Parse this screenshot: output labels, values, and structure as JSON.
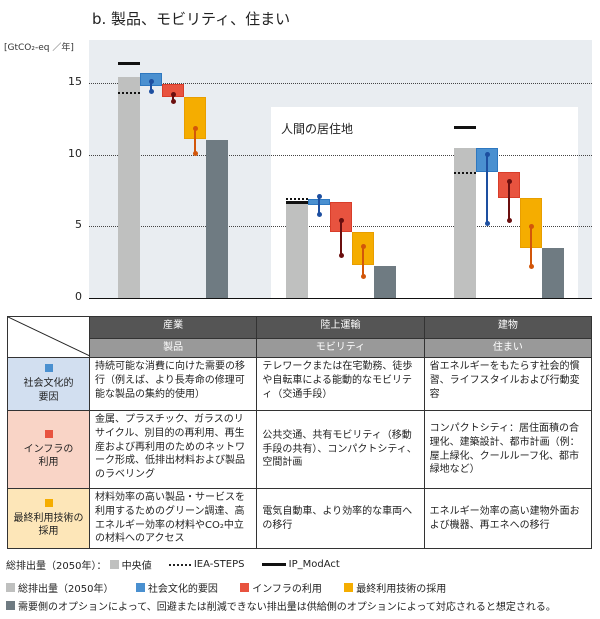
{
  "title": "b. 製品、モビリティ、住まい",
  "unit_label": "[GtCO₂-eq ／年]",
  "inset_label": "人間の居住地",
  "colors": {
    "total": "#bfc0bf",
    "socio_cultural": "#4a90d0",
    "infrastructure": "#e8533f",
    "end_use": "#f5ad00",
    "residual": "#6f7b82",
    "plot_bg": "#e9edf1"
  },
  "chart_data": {
    "type": "bar",
    "subtype": "waterfall",
    "title": "b. 製品、モビリティ、住まい",
    "ylabel": "GtCO₂-eq ／年",
    "ylim": [
      0,
      17.5
    ],
    "yticks": [
      0,
      5,
      10,
      15
    ],
    "grid": "dotted horizontal at 5, 10, 15",
    "categories": [
      "製品",
      "モビリティ",
      "住まい"
    ],
    "groups": [
      {
        "name": "製品",
        "total_median": 15.4,
        "iea_steps": 14.4,
        "ip_modact": 16.4,
        "socio_cultural": {
          "from": 15.7,
          "to": 14.8,
          "range": [
            15.1,
            14.4
          ]
        },
        "infrastructure": {
          "from": 14.9,
          "to": 14.0,
          "range": [
            14.2,
            13.7
          ]
        },
        "end_use": {
          "from": 14.0,
          "to": 11.1,
          "range": [
            11.8,
            10.1
          ]
        },
        "residual": 11.0
      },
      {
        "name": "モビリティ",
        "total_median": 6.6,
        "iea_steps": 7.0,
        "ip_modact": 6.7,
        "socio_cultural": {
          "from": 6.9,
          "to": 6.5,
          "range": [
            7.1,
            5.8
          ]
        },
        "infrastructure": {
          "from": 6.7,
          "to": 4.6,
          "range": [
            5.4,
            3.0
          ]
        },
        "end_use": {
          "from": 4.6,
          "to": 2.3,
          "range": [
            3.6,
            1.5
          ]
        },
        "residual": 2.2
      },
      {
        "name": "住まい",
        "total_median": 10.5,
        "iea_steps": 8.8,
        "ip_modact": 11.9,
        "socio_cultural": {
          "from": 10.5,
          "to": 8.8,
          "range": [
            10.0,
            5.2
          ]
        },
        "infrastructure": {
          "from": 8.8,
          "to": 7.0,
          "range": [
            8.1,
            5.4
          ]
        },
        "end_use": {
          "from": 7.0,
          "to": 3.5,
          "range": [
            5.0,
            2.2
          ]
        },
        "residual": 3.5
      }
    ],
    "annotations": [
      "人間の居住地"
    ],
    "legend_position": "bottom"
  },
  "table": {
    "sectors": [
      "産業",
      "陸上運輸",
      "建物"
    ],
    "services": [
      "製品",
      "モビリティ",
      "住まい"
    ],
    "rows": [
      {
        "label": "社会文化的要因",
        "label_lines": [
          "社会文化的",
          "要因"
        ],
        "color": "#4a90d0",
        "cells": [
          "持続可能な消費に向けた需要の移行（例えば、より長寿命の修理可能な製品の集約的使用）",
          "テレワークまたは在宅勤務、徒歩や自転車による能動的なモビリティ（交通手段）",
          "省エネルギーをもたらす社会的慣習、ライフスタイルおよび行動変容"
        ]
      },
      {
        "label": "インフラの利用",
        "label_lines": [
          "インフラの",
          "利用"
        ],
        "color": "#e8533f",
        "cells": [
          "金属、プラスチック、ガラスのリサイクル、別目的の再利用、再生産および再利用のためのネットワーク形成、低排出材料および製品のラベリング",
          "公共交通、共有モビリティ（移動手段の共有）、コンパクトシティ、空間計画",
          "コンパクトシティ：居住面積の合理化、建築設計、都市計画（例：屋上緑化、クールルーフ化、都市緑地など）"
        ]
      },
      {
        "label": "最終利用技術の採用",
        "label_lines": [
          "最終利用技術の",
          "採用"
        ],
        "color": "#f5ad00",
        "cells": [
          "材料効率の高い製品・サービスを利用するためのグリーン調達、高エネルギー効率の材料やCO₂中立の材料へのアクセス",
          "電気自動車、より効率的な車両への移行",
          "エネルギー効率の高い建物外面および機器、再エネへの移行"
        ]
      }
    ]
  },
  "legend": {
    "line1": {
      "prefix": "総排出量（2050年）：",
      "median": "中央値",
      "iea": "IEA-STEPS",
      "ip": "IP_ModAct"
    },
    "line2": [
      {
        "label": "総排出量（2050年）",
        "color": "#bfc0bf"
      },
      {
        "label": "社会文化的要因",
        "color": "#4a90d0"
      },
      {
        "label": "インフラの利用",
        "color": "#e8533f"
      },
      {
        "label": "最終利用技術の採用",
        "color": "#f5ad00"
      }
    ],
    "line3": {
      "label": "需要側のオプションによって、回避または削減できない排出量は供給側のオプションによって対応されると想定される。",
      "color": "#6f7b82"
    }
  }
}
